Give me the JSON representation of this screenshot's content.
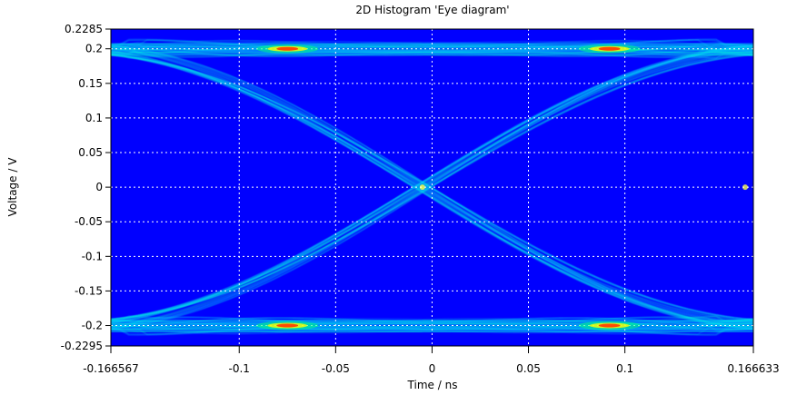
{
  "chart_data": {
    "type": "heatmap",
    "title": "2D Histogram 'Eye diagram'",
    "xlabel": "Time / ns",
    "ylabel": "Voltage / V",
    "xlim": [
      -0.166567,
      0.166633
    ],
    "ylim": [
      -0.2295,
      0.2285
    ],
    "x_ticks": [
      -0.166567,
      -0.1,
      -0.05,
      0,
      0.05,
      0.1,
      0.166633
    ],
    "x_tick_labels": [
      "-0.166567",
      "-0.1",
      "-0.05",
      "0",
      "0.05",
      "0.1",
      "0.166633"
    ],
    "y_ticks": [
      0.2285,
      0.2,
      0.15,
      0.1,
      0.05,
      0,
      -0.05,
      -0.1,
      -0.15,
      -0.2,
      -0.2295
    ],
    "y_tick_labels": [
      "0.2285",
      "0.2",
      "0.15",
      "0.1",
      "0.05",
      "0",
      "-0.05",
      "-0.1",
      "-0.15",
      "-0.2",
      "-0.2295"
    ],
    "grid": true,
    "bit_period_ns": 0.3332,
    "crossing_times_ns": [
      -0.005,
      0.1624
    ],
    "levels_v": [
      0.2,
      -0.2
    ],
    "hotspots": [
      {
        "t": -0.075,
        "v": 0.2
      },
      {
        "t": 0.092,
        "v": 0.2
      },
      {
        "t": -0.075,
        "v": -0.2
      },
      {
        "t": 0.092,
        "v": -0.2
      }
    ],
    "colors": {
      "background": "#0000ff",
      "low": "#00bfff",
      "mid": "#00ffc8",
      "high": "#ffff00",
      "peak": "#ff0000"
    }
  }
}
